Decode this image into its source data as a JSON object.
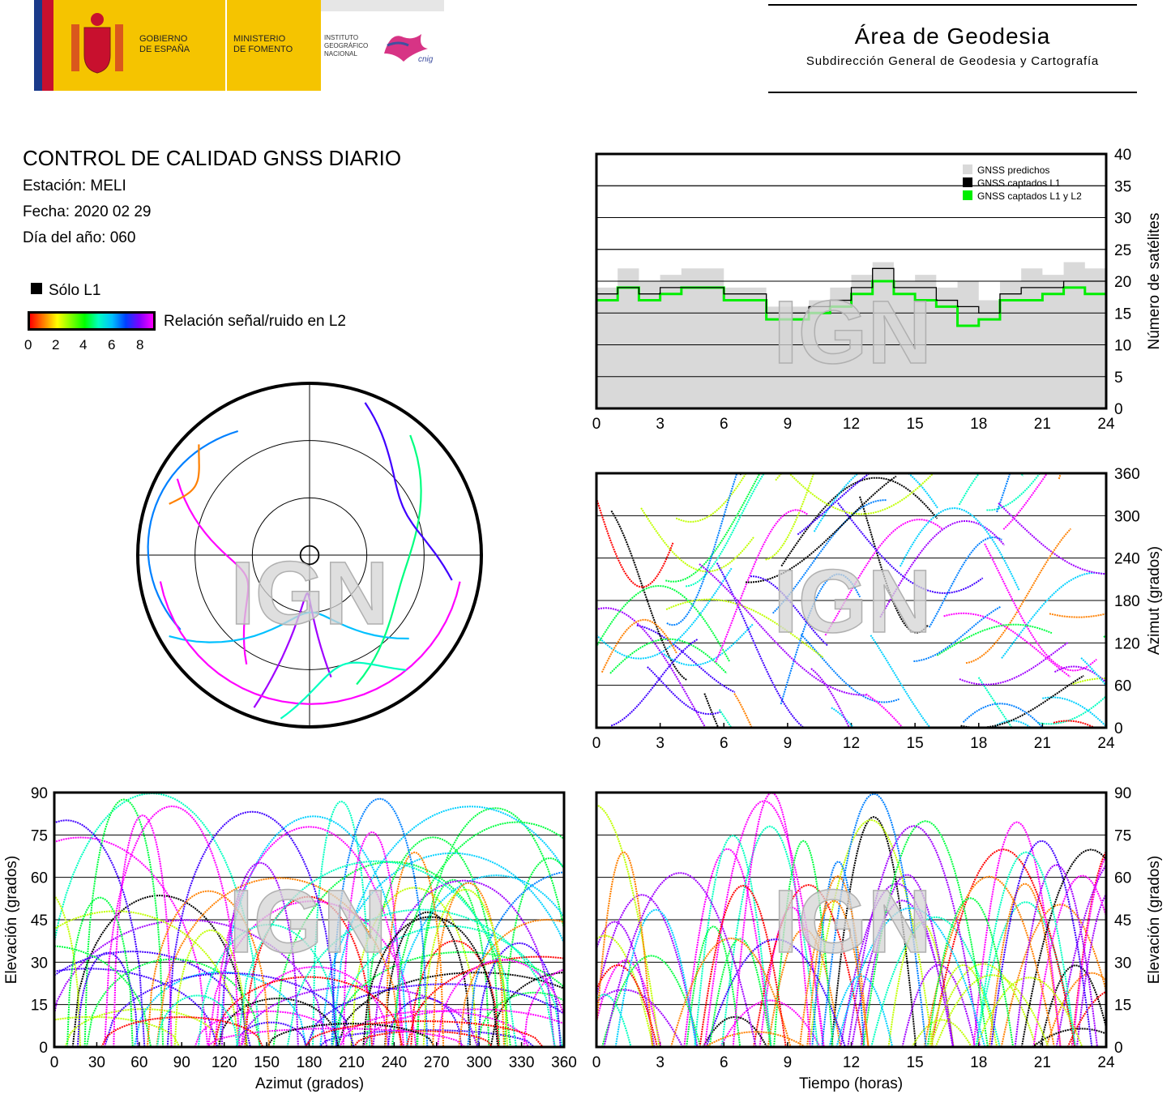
{
  "header": {
    "gov_line1": "GOBIERNO",
    "gov_line2": "DE ESPAÑA",
    "ministry_line1": "MINISTERIO",
    "ministry_line2": "DE FOMENTO",
    "ign_line1": "INSTITUTO",
    "ign_line2": "GEOGRÁFICO",
    "ign_line3": "NACIONAL",
    "cnig_logo_text": "cnig",
    "area_title": "Área de Geodesia",
    "area_subtitle": "Subdirección General de Geodesia y Cartografía"
  },
  "report": {
    "title": "CONTROL DE CALIDAD GNSS DIARIO",
    "station": "Estación: MELI",
    "date": "Fecha: 2020 02 29",
    "doy": "Día del año: 060",
    "legend_l1_only": "Sólo L1",
    "legend_snr": "Relación señal/ruido en L2",
    "snr_ticks": [
      "0",
      "2",
      "4",
      "6",
      "8"
    ]
  },
  "watermark": "IGN",
  "colors": {
    "predicted": "#d9d9d9",
    "l1": "#000000",
    "l1l2": "#00ee00",
    "track_palette": [
      "#ff00ff",
      "#a000ff",
      "#4000ff",
      "#0080ff",
      "#00d0ff",
      "#00ffc0",
      "#00ff40",
      "#c0ff00",
      "#ff8000",
      "#ff0000"
    ]
  },
  "chart_data": [
    {
      "id": "satellites",
      "type": "area",
      "x_ticks": [
        "0",
        "3",
        "6",
        "9",
        "12",
        "15",
        "18",
        "21",
        "24"
      ],
      "y_ticks": [
        "0",
        "5",
        "10",
        "15",
        "20",
        "25",
        "30",
        "35",
        "40"
      ],
      "xlim": [
        0,
        24
      ],
      "ylim": [
        0,
        40
      ],
      "ylabel": "Número de satélites",
      "grid": true,
      "legend_position": "top-right",
      "series": [
        {
          "name": "GNSS predichos",
          "x": [
            0,
            1,
            2,
            3,
            4,
            5,
            6,
            7,
            8,
            9,
            10,
            11,
            12,
            13,
            14,
            15,
            16,
            17,
            18,
            19,
            20,
            21,
            22,
            23,
            24
          ],
          "values": [
            19,
            22,
            20,
            21,
            22,
            22,
            19,
            19,
            16,
            16,
            17,
            19,
            21,
            23,
            20,
            21,
            19,
            20,
            17,
            20,
            22,
            21,
            23,
            22,
            19
          ]
        },
        {
          "name": "GNSS captados L1",
          "x": [
            0,
            1,
            2,
            3,
            4,
            5,
            6,
            7,
            8,
            9,
            10,
            11,
            12,
            13,
            14,
            15,
            16,
            17,
            18,
            19,
            20,
            21,
            22,
            23,
            24
          ],
          "values": [
            18,
            19,
            18,
            19,
            19,
            19,
            18,
            18,
            15,
            15,
            16,
            17,
            19,
            22,
            19,
            19,
            17,
            16,
            15,
            18,
            19,
            19,
            20,
            20,
            17
          ]
        },
        {
          "name": "GNSS captados L1 y L2",
          "x": [
            0,
            1,
            2,
            3,
            4,
            5,
            6,
            7,
            8,
            9,
            10,
            11,
            12,
            13,
            14,
            15,
            16,
            17,
            18,
            19,
            20,
            21,
            22,
            23,
            24
          ],
          "values": [
            17,
            19,
            17,
            18,
            19,
            19,
            17,
            17,
            14,
            14,
            15,
            16,
            18,
            20,
            18,
            17,
            16,
            13,
            14,
            17,
            17,
            18,
            19,
            18,
            16
          ]
        }
      ]
    },
    {
      "id": "skyplot",
      "type": "scatter",
      "elevation_rings": [
        0,
        30,
        60,
        85
      ]
    },
    {
      "id": "azimuth-time",
      "type": "line",
      "x_ticks": [
        "0",
        "3",
        "6",
        "9",
        "12",
        "15",
        "18",
        "21",
        "24"
      ],
      "y_ticks": [
        "0",
        "60",
        "120",
        "180",
        "240",
        "300",
        "360"
      ],
      "xlim": [
        0,
        24
      ],
      "ylim": [
        0,
        360
      ],
      "ylabel": "Azimut (grados)",
      "grid": true
    },
    {
      "id": "elevation-azimuth",
      "type": "line",
      "x_ticks": [
        "0",
        "30",
        "60",
        "90",
        "120",
        "150",
        "180",
        "210",
        "240",
        "270",
        "300",
        "330",
        "360"
      ],
      "y_ticks": [
        "0",
        "15",
        "30",
        "45",
        "60",
        "75",
        "90"
      ],
      "xlim": [
        0,
        360
      ],
      "ylim": [
        0,
        90
      ],
      "xlabel": "Azimut (grados)",
      "ylabel": "Elevación (grados)",
      "grid": true
    },
    {
      "id": "elevation-time",
      "type": "line",
      "x_ticks": [
        "0",
        "3",
        "6",
        "9",
        "12",
        "15",
        "18",
        "21",
        "24"
      ],
      "y_ticks": [
        "0",
        "15",
        "30",
        "45",
        "60",
        "75",
        "90"
      ],
      "xlim": [
        0,
        24
      ],
      "ylim": [
        0,
        90
      ],
      "xlabel": "Tiempo (horas)",
      "ylabel": "Elevación (grados)",
      "grid": true
    }
  ]
}
